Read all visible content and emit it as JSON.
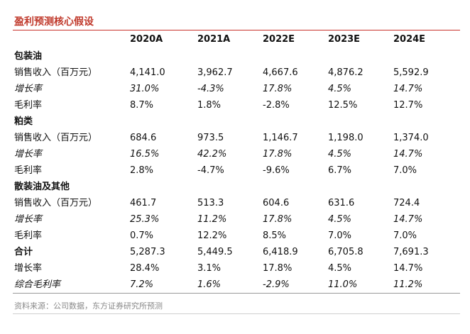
{
  "title": "盈利预测核心假设",
  "columns": [
    "",
    "2020A",
    "2021A",
    "2022E",
    "2023E",
    "2024E"
  ],
  "sections": [
    {
      "name": "包装油",
      "rows": [
        {
          "label": "销售收入（百万元）",
          "values": [
            "4,141.0",
            "3,962.7",
            "4,667.6",
            "4,876.2",
            "5,592.9"
          ]
        },
        {
          "label": "增长率",
          "values": [
            "31.0%",
            "-4.3%",
            "17.8%",
            "4.5%",
            "14.7%"
          ]
        },
        {
          "label": "毛利率",
          "values": [
            "8.7%",
            "1.8%",
            "-2.8%",
            "12.5%",
            "12.7%"
          ]
        }
      ]
    },
    {
      "name": "粕类",
      "rows": [
        {
          "label": "销售收入（百万元）",
          "values": [
            "684.6",
            "973.5",
            "1,146.7",
            "1,198.0",
            "1,374.0"
          ]
        },
        {
          "label": "增长率",
          "values": [
            "16.5%",
            "42.2%",
            "17.8%",
            "4.5%",
            "14.7%"
          ]
        },
        {
          "label": "毛利率",
          "values": [
            "2.8%",
            "-4.7%",
            "-9.6%",
            "6.7%",
            "7.0%"
          ]
        }
      ]
    },
    {
      "name": "散装油及其他",
      "rows": [
        {
          "label": "销售收入（百万元）",
          "values": [
            "461.7",
            "513.3",
            "604.6",
            "631.6",
            "724.4"
          ]
        },
        {
          "label": "增长率",
          "values": [
            "25.3%",
            "11.2%",
            "17.8%",
            "4.5%",
            "14.7%"
          ]
        },
        {
          "label": "毛利率",
          "values": [
            "0.7%",
            "12.2%",
            "8.5%",
            "7.0%",
            "7.0%"
          ]
        }
      ]
    }
  ],
  "total": {
    "label": "合计",
    "values": [
      "5,287.3",
      "5,449.5",
      "6,418.9",
      "6,705.8",
      "7,691.3"
    ],
    "rows": [
      {
        "label": "增长率",
        "values": [
          "28.4%",
          "3.1%",
          "17.8%",
          "4.5%",
          "14.7%"
        ]
      },
      {
        "label": "综合毛利率",
        "values": [
          "7.2%",
          "1.6%",
          "-2.9%",
          "11.0%",
          "11.2%"
        ]
      }
    ]
  },
  "source": "资料来源：公司数据，东方证券研究所预测",
  "colors": {
    "title": "#c0392b",
    "title_rule": "#c8312a",
    "source": "#8a8a8a"
  }
}
